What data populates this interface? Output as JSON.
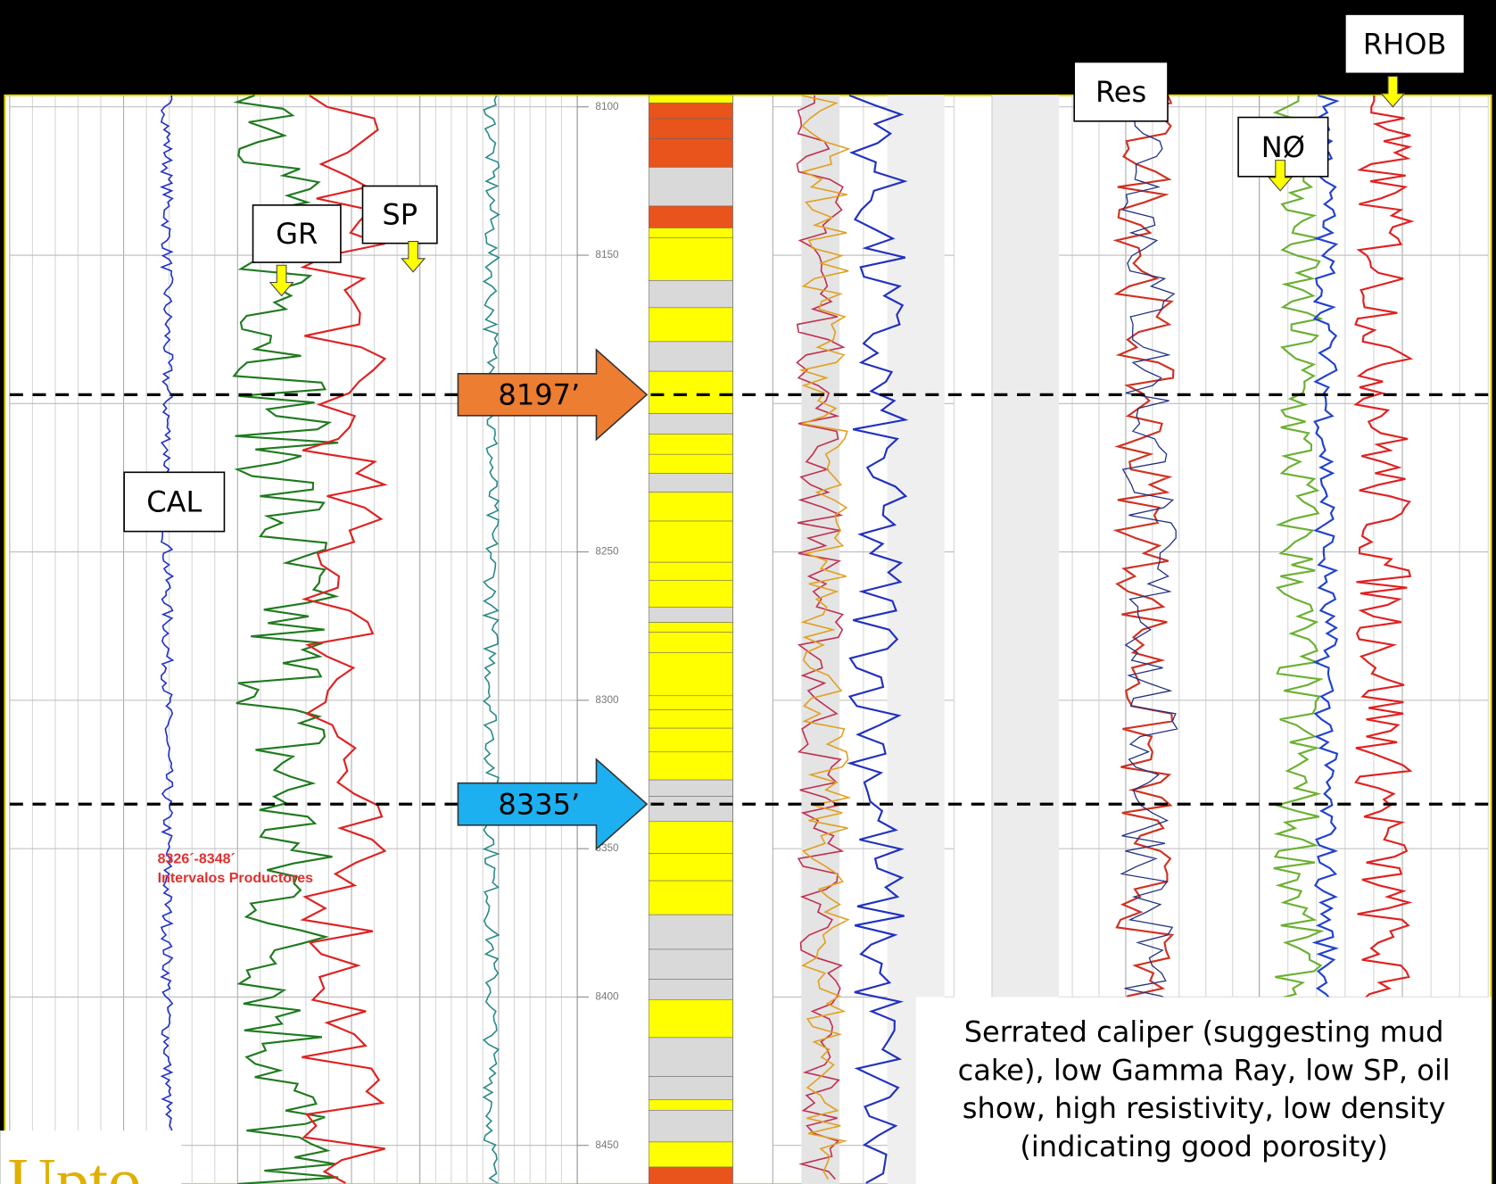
{
  "curve_labels": {
    "gr": "GR",
    "sp": "SP",
    "cal": "CAL",
    "res": "Res",
    "neutron": "NØ",
    "rhob": "RHOB"
  },
  "depth_ticks": [
    8100,
    8150,
    8250,
    8300,
    8350,
    8400,
    8450
  ],
  "markers": [
    {
      "depth": 8197,
      "label": "8197’"
    },
    {
      "depth": 8335,
      "label": "8335’"
    }
  ],
  "interval_note": {
    "range": "8326´-8348´",
    "label": "Intervalos Productores"
  },
  "caption": [
    "Serrated caliper (suggesting mud",
    "cake), low Gamma Ray, low SP, oil",
    "show, high resistivity, low density",
    "(indicating good porosity)"
  ],
  "logo": "Upto"
}
